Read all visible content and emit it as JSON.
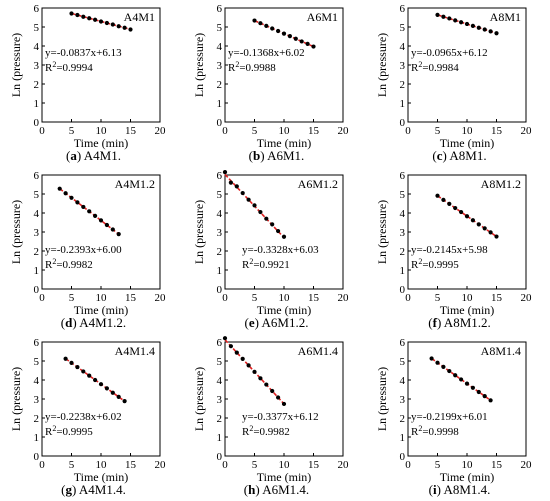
{
  "chart_data": [
    {
      "type": "scatter",
      "panel": "a",
      "caption_rest": "A4M1.",
      "title": "A4M1",
      "xlabel": "Time (min)",
      "ylabel": "Ln (pressure)",
      "xlim": [
        0,
        20
      ],
      "ylim": [
        0,
        6
      ],
      "xticks": [
        0,
        5,
        10,
        15,
        20
      ],
      "yticks": [
        0,
        1,
        2,
        3,
        4,
        5,
        6
      ],
      "x": [
        5,
        6,
        7,
        8,
        9,
        10,
        11,
        12,
        13,
        14,
        15
      ],
      "y": [
        5.71,
        5.63,
        5.54,
        5.46,
        5.38,
        5.29,
        5.21,
        5.13,
        5.04,
        4.96,
        4.87
      ],
      "fit": {
        "slope": -0.0837,
        "intercept": 6.13,
        "x_range": [
          5,
          15
        ]
      },
      "equation": "y=-0.0837x+6.13",
      "r2_label": "R",
      "r2_sup": "2",
      "r2_value": "=0.9994",
      "title_pos": "top-right",
      "eq_pos": "middle-left"
    },
    {
      "type": "scatter",
      "panel": "b",
      "caption_rest": "A6M1.",
      "title": "A6M1",
      "xlabel": "Time (min)",
      "ylabel": "Ln (pressure)",
      "xlim": [
        0,
        20
      ],
      "ylim": [
        0,
        6
      ],
      "xticks": [
        0,
        5,
        10,
        15,
        20
      ],
      "yticks": [
        0,
        1,
        2,
        3,
        4,
        5,
        6
      ],
      "x": [
        5,
        6,
        7,
        8,
        9,
        10,
        11,
        12,
        13,
        14,
        15
      ],
      "y": [
        5.34,
        5.2,
        5.06,
        4.92,
        4.79,
        4.65,
        4.52,
        4.38,
        4.24,
        4.11,
        3.97
      ],
      "fit": {
        "slope": -0.1368,
        "intercept": 6.02,
        "x_range": [
          5,
          15
        ]
      },
      "equation": "y=-0.1368x+6.02",
      "r2_label": "R",
      "r2_sup": "2",
      "r2_value": "=0.9988",
      "title_pos": "top-right",
      "eq_pos": "middle-left"
    },
    {
      "type": "scatter",
      "panel": "c",
      "caption_rest": "A8M1.",
      "title": "A8M1",
      "xlabel": "Time (min)",
      "ylabel": "Ln (pressure)",
      "xlim": [
        0,
        20
      ],
      "ylim": [
        0,
        6
      ],
      "xticks": [
        0,
        5,
        10,
        15,
        20
      ],
      "yticks": [
        0,
        1,
        2,
        3,
        4,
        5,
        6
      ],
      "x": [
        5,
        6,
        7,
        8,
        9,
        10,
        11,
        12,
        13,
        14,
        15
      ],
      "y": [
        5.64,
        5.54,
        5.45,
        5.35,
        5.25,
        5.16,
        5.06,
        4.96,
        4.87,
        4.77,
        4.67
      ],
      "fit": {
        "slope": -0.0965,
        "intercept": 6.12,
        "x_range": [
          5,
          15
        ]
      },
      "equation": "y=-0.0965x+6.12",
      "r2_label": "R",
      "r2_sup": "2",
      "r2_value": "=0.9984",
      "title_pos": "top-right",
      "eq_pos": "middle-left"
    },
    {
      "type": "scatter",
      "panel": "d",
      "caption_rest": "A4M1.2.",
      "title": "A4M1.2",
      "xlabel": "Time (min)",
      "ylabel": "Ln (pressure)",
      "xlim": [
        0,
        20
      ],
      "ylim": [
        0,
        6
      ],
      "xticks": [
        0,
        5,
        10,
        15,
        20
      ],
      "yticks": [
        0,
        1,
        2,
        3,
        4,
        5,
        6
      ],
      "x": [
        3,
        4,
        5,
        6,
        7,
        8,
        9,
        10,
        11,
        12,
        13
      ],
      "y": [
        5.28,
        5.04,
        4.8,
        4.56,
        4.32,
        4.09,
        3.85,
        3.61,
        3.37,
        3.13,
        2.89
      ],
      "fit": {
        "slope": -0.2393,
        "intercept": 6.0,
        "x_range": [
          3,
          13
        ]
      },
      "equation": "y=-0.2393x+6.00",
      "r2_label": "R",
      "r2_sup": "2",
      "r2_value": "=0.9982",
      "title_pos": "top-right",
      "eq_pos": "bottom-left"
    },
    {
      "type": "scatter",
      "panel": "e",
      "caption_rest": "A6M1.2.",
      "title": "A6M1.2",
      "xlabel": "Time (min)",
      "ylabel": "Ln (pressure)",
      "xlim": [
        0,
        20
      ],
      "ylim": [
        0,
        6
      ],
      "xticks": [
        0,
        5,
        10,
        15,
        20
      ],
      "yticks": [
        0,
        1,
        2,
        3,
        4,
        5,
        6
      ],
      "x": [
        0,
        1,
        2,
        3,
        4,
        5,
        6,
        7,
        8,
        9,
        10
      ],
      "y": [
        6.15,
        5.6,
        5.4,
        5.05,
        4.7,
        4.4,
        4.05,
        3.7,
        3.4,
        3.05,
        2.75
      ],
      "fit": {
        "slope": -0.3328,
        "intercept": 6.03,
        "x_range": [
          0,
          10
        ]
      },
      "equation": "y=-0.3328x+6.03",
      "r2_label": "R",
      "r2_sup": "2",
      "r2_value": "=0.9921",
      "title_pos": "top-right",
      "eq_pos": "bottom-middle"
    },
    {
      "type": "scatter",
      "panel": "f",
      "caption_rest": "A8M1.2.",
      "title": "A8M1.2",
      "xlabel": "Time (min)",
      "ylabel": "Ln (pressure)",
      "xlim": [
        0,
        20
      ],
      "ylim": [
        0,
        6
      ],
      "xticks": [
        0,
        5,
        10,
        15,
        20
      ],
      "yticks": [
        0,
        1,
        2,
        3,
        4,
        5,
        6
      ],
      "x": [
        5,
        6,
        7,
        8,
        9,
        10,
        11,
        12,
        13,
        14,
        15
      ],
      "y": [
        4.91,
        4.69,
        4.48,
        4.26,
        4.05,
        3.83,
        3.62,
        3.4,
        3.19,
        2.98,
        2.76
      ],
      "fit": {
        "slope": -0.2145,
        "intercept": 5.98,
        "x_range": [
          5,
          15
        ]
      },
      "equation": "y=-0.2145x+5.98",
      "r2_label": "R",
      "r2_sup": "2",
      "r2_value": "=0.9995",
      "title_pos": "top-right",
      "eq_pos": "bottom-left"
    },
    {
      "type": "scatter",
      "panel": "g",
      "caption_rest": "A4M1.4.",
      "title": "A4M1.4",
      "xlabel": "Time (min)",
      "ylabel": "Ln (pressure)",
      "xlim": [
        0,
        20
      ],
      "ylim": [
        0,
        6
      ],
      "xticks": [
        0,
        5,
        10,
        15,
        20
      ],
      "yticks": [
        0,
        1,
        2,
        3,
        4,
        5,
        6
      ],
      "x": [
        4,
        5,
        6,
        7,
        8,
        9,
        10,
        11,
        12,
        13,
        14
      ],
      "y": [
        5.12,
        4.9,
        4.68,
        4.45,
        4.23,
        4.0,
        3.78,
        3.56,
        3.33,
        3.11,
        2.89
      ],
      "fit": {
        "slope": -0.2238,
        "intercept": 6.02,
        "x_range": [
          4,
          14
        ]
      },
      "equation": "y=-0.2238x+6.02",
      "r2_label": "R",
      "r2_sup": "2",
      "r2_value": "=0.9995",
      "title_pos": "top-right",
      "eq_pos": "bottom-left"
    },
    {
      "type": "scatter",
      "panel": "h",
      "caption_rest": "A6M1.4.",
      "title": "A6M1.4",
      "xlabel": "Time (min)",
      "ylabel": "Ln (pressure)",
      "xlim": [
        0,
        20
      ],
      "ylim": [
        0,
        6
      ],
      "xticks": [
        0,
        5,
        10,
        15,
        20
      ],
      "yticks": [
        0,
        1,
        2,
        3,
        4,
        5,
        6
      ],
      "x": [
        0,
        1,
        2,
        3,
        4,
        5,
        6,
        7,
        8,
        9,
        10
      ],
      "y": [
        6.2,
        5.78,
        5.44,
        5.11,
        4.77,
        4.43,
        4.09,
        3.76,
        3.42,
        3.08,
        2.74
      ],
      "fit": {
        "slope": -0.3377,
        "intercept": 6.12,
        "x_range": [
          0,
          10
        ]
      },
      "equation": "y=-0.3377x+6.12",
      "r2_label": "R",
      "r2_sup": "2",
      "r2_value": "=0.9982",
      "title_pos": "top-right",
      "eq_pos": "bottom-middle"
    },
    {
      "type": "scatter",
      "panel": "i",
      "caption_rest": "A8M1.4.",
      "title": "A8M1.4",
      "xlabel": "Time (min)",
      "ylabel": "Ln (pressure)",
      "xlim": [
        0,
        20
      ],
      "ylim": [
        0,
        6
      ],
      "xticks": [
        0,
        5,
        10,
        15,
        20
      ],
      "yticks": [
        0,
        1,
        2,
        3,
        4,
        5,
        6
      ],
      "x": [
        4,
        5,
        6,
        7,
        8,
        9,
        10,
        11,
        12,
        13,
        14
      ],
      "y": [
        5.13,
        4.91,
        4.69,
        4.47,
        4.25,
        4.03,
        3.81,
        3.59,
        3.37,
        3.15,
        2.93
      ],
      "fit": {
        "slope": -0.2199,
        "intercept": 6.01,
        "x_range": [
          4,
          14
        ]
      },
      "equation": "y=-0.2199x+6.01",
      "r2_label": "R",
      "r2_sup": "2",
      "r2_value": "=0.9998",
      "title_pos": "top-right",
      "eq_pos": "bottom-left"
    }
  ],
  "colors": {
    "points": "#000000",
    "fit_line": "#e02020",
    "axes": "#000000"
  }
}
